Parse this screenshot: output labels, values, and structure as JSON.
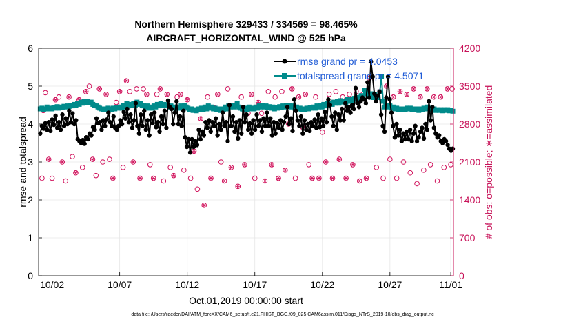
{
  "chart_data": {
    "type": "line",
    "title_line1": "Northern Hemisphere 329433 / 334569 = 98.465%",
    "title_line2": "AIRCRAFT_HORIZONTAL_WIND @ 525 hPa",
    "xlabel": "Oct.01,2019 00:00:00 start",
    "ylabel_left": "rmse and totalspread",
    "ylabel_right": "# of obs: o=possible; ∗=assimilated",
    "x_range": [
      0.5,
      31.2
    ],
    "ylim_left": [
      0,
      6
    ],
    "ylim_right": [
      0,
      4200
    ],
    "x_ticks": [
      {
        "value": 1.5,
        "label": "10/02"
      },
      {
        "value": 6.5,
        "label": "10/07"
      },
      {
        "value": 11.5,
        "label": "10/12"
      },
      {
        "value": 16.5,
        "label": "10/17"
      },
      {
        "value": 21.5,
        "label": "10/22"
      },
      {
        "value": 26.5,
        "label": "10/27"
      },
      {
        "value": 31.0,
        "label": "11/01"
      }
    ],
    "y_ticks_left": [
      "0",
      "1",
      "2",
      "3",
      "4",
      "5",
      "6"
    ],
    "y_ticks_right": [
      "0",
      "700",
      "1400",
      "2100",
      "2800",
      "3500",
      "4200"
    ],
    "legend": [
      {
        "label": "rmse grand pr = 4.0453",
        "color": "#000000"
      },
      {
        "label": "totalspread grand pr = 4.5071",
        "color": "#008b8b"
      }
    ],
    "footnote": "data file: /Users/raeder/DAI/ATM_forcXX/CAM6_setup/f.e21.FHIST_BGC.f09_025.CAM6assim.011/Diags_NTrS_2019-10/obs_diag_output.nc",
    "colors": {
      "rmse": "#000000",
      "spread": "#008b8b",
      "obs": "#d0105a",
      "axis_right": "#c8145a"
    },
    "series": [
      {
        "name": "rmse",
        "values": [
          3.75,
          3.95,
          3.88,
          4.02,
          3.85,
          4.05,
          3.82,
          4.12,
          3.98,
          4.22,
          3.9,
          4.05,
          3.85,
          4.25,
          3.95,
          4.15,
          4.0,
          4.35,
          4.05,
          4.28,
          4.0,
          4.1,
          3.6,
          3.55,
          3.5,
          3.58,
          3.48,
          3.65,
          3.6,
          3.75,
          3.7,
          3.92,
          3.85,
          4.15,
          4.02,
          4.05,
          3.85,
          4.1,
          3.95,
          4.12,
          4.3,
          4.05,
          3.95,
          4.2,
          3.9,
          3.85,
          3.95,
          4.1,
          4.0,
          4.32,
          4.15,
          4.4,
          4.05,
          4.25,
          3.9,
          4.1,
          4.55,
          3.95,
          3.75,
          4.25,
          3.95,
          4.35,
          3.85,
          4.1,
          3.7,
          4.25,
          4.02,
          4.3,
          3.92,
          4.05,
          3.8,
          4.2,
          4.0,
          4.35,
          3.9,
          4.62,
          4.45,
          4.4,
          4.0,
          4.3,
          4.6,
          4.0,
          4.2,
          3.95,
          4.35,
          3.65,
          3.4,
          3.6,
          3.25,
          3.6,
          3.4,
          3.55,
          3.45,
          3.85,
          3.6,
          3.8,
          3.7,
          4.05,
          3.9,
          4.1,
          3.8,
          4.05,
          3.95,
          4.15,
          3.7,
          4.0,
          3.85,
          4.3,
          3.95,
          4.05,
          3.55,
          4.5,
          3.95,
          4.2,
          3.8,
          4.05,
          3.62,
          4.1,
          3.75,
          4.45,
          4.05,
          4.25,
          3.85,
          4.02,
          3.75,
          4.1,
          3.85,
          4.25,
          3.95,
          4.1,
          3.8,
          4.15,
          3.95,
          4.3,
          3.95,
          4.15,
          3.7,
          4.05,
          3.75,
          4.02,
          3.9,
          4.1,
          3.85,
          4.05,
          4.2,
          4.45,
          4.0,
          4.15,
          3.82,
          4.65,
          4.35,
          4.1,
          3.95,
          4.2,
          3.75,
          4.1,
          3.85,
          4.0,
          3.82,
          4.05,
          3.95,
          4.12,
          3.9,
          4.25,
          3.92,
          4.15,
          3.95,
          4.32,
          4.05,
          4.65,
          4.5,
          4.2,
          3.95,
          4.3,
          3.85,
          4.25,
          4.1,
          4.4,
          4.1,
          4.55,
          4.35,
          4.45,
          4.3,
          4.5,
          4.4,
          4.95,
          4.55,
          4.45,
          4.6,
          4.7,
          4.65,
          4.55,
          5.1,
          4.7,
          5.65,
          5.25,
          4.8,
          4.6,
          4.75,
          4.85,
          4.25,
          3.95,
          3.8,
          4.7,
          5.25,
          4.65,
          4.3,
          3.95,
          3.65,
          4.0,
          3.7,
          3.85,
          3.55,
          3.75,
          3.6,
          3.8,
          3.6,
          3.85,
          3.55,
          3.75,
          3.95,
          3.55,
          3.65,
          3.8,
          3.9,
          3.62,
          4.0,
          3.85,
          4.6,
          4.1,
          4.45,
          3.9,
          3.75,
          3.65,
          3.7,
          3.55,
          3.5,
          3.6,
          3.55,
          3.45,
          3.35,
          3.3,
          3.35
        ],
        "n_values": 246
      },
      {
        "name": "totalspread",
        "values": [
          4.4,
          4.42,
          4.38,
          4.4,
          4.45,
          4.4,
          4.42,
          4.4,
          4.44,
          4.42,
          4.46,
          4.42,
          4.45,
          4.44,
          4.47,
          4.45,
          4.48,
          4.46,
          4.5,
          4.48,
          4.52,
          4.5,
          4.55,
          4.52,
          4.58,
          4.55,
          4.6,
          4.57,
          4.6,
          4.57,
          4.58,
          4.52,
          4.5,
          4.48,
          4.45,
          4.42,
          4.4,
          4.38,
          4.4,
          4.38,
          4.42,
          4.4,
          4.38,
          4.42,
          4.4,
          4.44,
          4.42,
          4.45,
          4.42,
          4.5,
          4.45,
          4.55,
          4.48,
          4.52,
          4.5,
          4.55,
          4.5,
          4.58,
          4.52,
          4.55,
          4.5,
          4.48,
          4.45,
          4.48,
          4.42,
          4.45,
          4.42,
          4.48,
          4.45,
          4.52,
          4.48,
          4.55,
          4.5,
          4.52,
          4.48,
          4.5,
          4.45,
          4.48,
          4.42,
          4.45,
          4.4,
          4.44,
          4.42,
          4.48,
          4.45,
          4.5,
          4.45,
          4.42,
          4.38,
          4.4,
          4.36,
          4.38,
          4.35,
          4.4,
          4.38,
          4.42,
          4.38,
          4.45,
          4.4,
          4.48,
          4.42,
          4.45,
          4.4,
          4.42,
          4.38,
          4.4,
          4.36,
          4.4,
          4.38,
          4.45,
          4.4,
          4.48,
          4.45,
          4.5,
          4.45,
          4.5,
          4.55,
          4.45,
          4.42,
          4.4,
          4.38,
          4.42,
          4.38,
          4.45,
          4.4,
          4.42,
          4.4,
          4.45,
          4.42,
          4.48,
          4.45,
          4.5,
          4.45,
          4.48,
          4.44,
          4.46,
          4.42,
          4.45,
          4.4,
          4.44,
          4.42,
          4.46,
          4.44,
          4.48,
          4.45,
          4.5,
          4.46,
          4.5,
          4.45,
          4.48,
          4.42,
          4.45,
          4.4,
          4.42,
          4.38,
          4.4,
          4.38,
          4.42,
          4.4,
          4.44,
          4.42,
          4.45,
          4.42,
          4.48,
          4.45,
          4.5,
          4.45,
          4.52,
          4.48,
          4.55,
          4.5,
          4.55,
          4.52,
          4.58,
          4.55,
          4.6,
          4.55,
          4.62,
          4.58,
          4.6,
          4.55,
          4.65,
          4.6,
          4.65,
          4.62,
          4.68,
          4.65,
          4.7,
          4.65,
          4.75,
          4.7,
          4.9,
          4.8,
          4.85,
          4.75,
          4.8,
          4.7,
          4.78,
          4.72,
          4.7,
          4.85,
          5.25,
          4.6,
          4.45,
          4.5,
          4.45,
          4.48,
          4.42,
          4.45,
          4.4,
          4.42,
          4.38,
          4.4,
          4.38,
          4.4,
          4.38,
          4.42,
          4.4,
          4.42,
          4.38,
          4.4,
          4.38,
          4.4,
          4.36,
          4.4,
          4.38,
          4.42,
          4.4,
          4.45,
          4.42,
          4.4,
          4.38,
          4.4,
          4.36,
          4.38,
          4.36,
          4.38,
          4.35,
          4.38,
          4.36,
          4.38,
          4.35,
          4.36,
          4.34
        ],
        "n_values": 246
      }
    ],
    "obs_possible": [
      [
        0.75,
        1800
      ],
      [
        0.85,
        3050
      ],
      [
        1.0,
        3380
      ],
      [
        1.25,
        2150
      ],
      [
        1.5,
        1800
      ],
      [
        1.75,
        3250
      ],
      [
        2.0,
        3300
      ],
      [
        2.25,
        2100
      ],
      [
        2.5,
        1750
      ],
      [
        2.75,
        3300
      ],
      [
        3.0,
        2200
      ],
      [
        3.25,
        1900
      ],
      [
        3.5,
        3250
      ],
      [
        3.75,
        2000
      ],
      [
        4.0,
        3400
      ],
      [
        4.25,
        3500
      ],
      [
        4.5,
        2150
      ],
      [
        4.75,
        1850
      ],
      [
        5.0,
        3450
      ],
      [
        5.25,
        2100
      ],
      [
        5.5,
        3350
      ],
      [
        5.75,
        2150
      ],
      [
        6.0,
        1800
      ],
      [
        6.25,
        3200
      ],
      [
        6.5,
        3400
      ],
      [
        6.75,
        2000
      ],
      [
        7.0,
        3600
      ],
      [
        7.25,
        3400
      ],
      [
        7.5,
        2100
      ],
      [
        7.75,
        3450
      ],
      [
        8.0,
        1800
      ],
      [
        8.25,
        3450
      ],
      [
        8.5,
        3350
      ],
      [
        8.75,
        2050
      ],
      [
        9.0,
        1800
      ],
      [
        9.25,
        3350
      ],
      [
        9.5,
        3450
      ],
      [
        9.75,
        1750
      ],
      [
        10.0,
        3350
      ],
      [
        10.25,
        2000
      ],
      [
        10.5,
        1850
      ],
      [
        10.75,
        3300
      ],
      [
        11.0,
        3350
      ],
      [
        11.25,
        1950
      ],
      [
        11.5,
        3250
      ],
      [
        11.75,
        1800
      ],
      [
        12.0,
        2300
      ],
      [
        12.25,
        1600
      ],
      [
        12.5,
        2900
      ],
      [
        12.75,
        1300
      ],
      [
        13.0,
        3300
      ],
      [
        13.25,
        1800
      ],
      [
        13.5,
        3100
      ],
      [
        13.75,
        3350
      ],
      [
        14.0,
        2100
      ],
      [
        14.25,
        1750
      ],
      [
        14.5,
        3450
      ],
      [
        14.75,
        2000
      ],
      [
        15.0,
        3150
      ],
      [
        15.25,
        1650
      ],
      [
        15.5,
        3300
      ],
      [
        15.75,
        2050
      ],
      [
        16.0,
        3000
      ],
      [
        16.25,
        3350
      ],
      [
        16.5,
        1800
      ],
      [
        16.75,
        3200
      ],
      [
        17.0,
        3000
      ],
      [
        17.25,
        1750
      ],
      [
        17.5,
        3400
      ],
      [
        17.75,
        2050
      ],
      [
        18.0,
        3300
      ],
      [
        18.25,
        1800
      ],
      [
        18.5,
        3400
      ],
      [
        18.75,
        1950
      ],
      [
        19.0,
        2800
      ],
      [
        19.25,
        3450
      ],
      [
        19.5,
        1800
      ],
      [
        19.75,
        3300
      ],
      [
        20.0,
        2750
      ],
      [
        20.25,
        3350
      ],
      [
        20.5,
        2050
      ],
      [
        20.75,
        1800
      ],
      [
        21.0,
        3300
      ],
      [
        21.25,
        1800
      ],
      [
        21.5,
        2650
      ],
      [
        21.75,
        2100
      ],
      [
        22.0,
        3350
      ],
      [
        22.25,
        1800
      ],
      [
        22.5,
        3400
      ],
      [
        22.75,
        2150
      ],
      [
        23.0,
        3300
      ],
      [
        23.25,
        1800
      ],
      [
        23.5,
        3350
      ],
      [
        23.75,
        2050
      ],
      [
        24.0,
        3400
      ],
      [
        24.25,
        1750
      ],
      [
        24.5,
        3350
      ],
      [
        24.75,
        1800
      ],
      [
        25.0,
        3650
      ],
      [
        25.25,
        3350
      ],
      [
        25.5,
        2000
      ],
      [
        25.75,
        3400
      ],
      [
        26.0,
        1800
      ],
      [
        26.25,
        3500
      ],
      [
        26.5,
        2150
      ],
      [
        26.75,
        3300
      ],
      [
        27.0,
        1800
      ],
      [
        27.25,
        3400
      ],
      [
        27.5,
        2100
      ],
      [
        27.75,
        3350
      ],
      [
        28.0,
        1900
      ],
      [
        28.25,
        3450
      ],
      [
        28.5,
        1700
      ],
      [
        28.75,
        3300
      ],
      [
        29.0,
        1950
      ],
      [
        29.25,
        3450
      ],
      [
        29.5,
        2050
      ],
      [
        29.75,
        3300
      ],
      [
        30.0,
        1750
      ],
      [
        30.25,
        3300
      ],
      [
        30.5,
        2000
      ],
      [
        30.75,
        3450
      ],
      [
        31.0,
        2050
      ],
      [
        31.1,
        3450
      ]
    ],
    "obs_assimilated": [
      [
        0.85,
        3050
      ],
      [
        1.25,
        2150
      ],
      [
        1.75,
        3250
      ],
      [
        2.25,
        2100
      ],
      [
        2.75,
        3300
      ],
      [
        3.25,
        1900
      ],
      [
        3.5,
        3250
      ],
      [
        4.0,
        3400
      ],
      [
        4.5,
        2150
      ],
      [
        5.0,
        3450
      ],
      [
        5.5,
        3350
      ],
      [
        6.0,
        1800
      ],
      [
        6.5,
        3400
      ],
      [
        7.0,
        3600
      ],
      [
        7.5,
        2100
      ],
      [
        8.0,
        1800
      ],
      [
        8.5,
        3350
      ],
      [
        9.0,
        1800
      ],
      [
        9.5,
        3450
      ],
      [
        10.0,
        3350
      ],
      [
        10.5,
        1850
      ],
      [
        11.0,
        3350
      ],
      [
        11.5,
        3250
      ],
      [
        12.0,
        2300
      ],
      [
        12.5,
        2900
      ],
      [
        12.75,
        1300
      ],
      [
        13.25,
        1800
      ],
      [
        13.75,
        3350
      ],
      [
        14.25,
        1750
      ],
      [
        14.75,
        2000
      ],
      [
        15.25,
        1650
      ],
      [
        15.75,
        2050
      ],
      [
        16.25,
        3350
      ],
      [
        16.75,
        3200
      ],
      [
        17.25,
        1750
      ],
      [
        17.75,
        2050
      ],
      [
        18.25,
        1800
      ],
      [
        18.75,
        1950
      ],
      [
        19.25,
        3450
      ],
      [
        19.75,
        3300
      ],
      [
        20.25,
        3350
      ],
      [
        20.75,
        1800
      ],
      [
        21.25,
        1800
      ],
      [
        21.75,
        2100
      ],
      [
        22.25,
        1800
      ],
      [
        22.75,
        2150
      ],
      [
        23.25,
        1800
      ],
      [
        23.75,
        2050
      ],
      [
        24.25,
        1750
      ],
      [
        24.75,
        1800
      ],
      [
        25.25,
        3350
      ],
      [
        25.75,
        3400
      ],
      [
        26.25,
        3500
      ],
      [
        26.75,
        3300
      ],
      [
        27.25,
        3400
      ],
      [
        27.75,
        3350
      ],
      [
        28.25,
        3450
      ],
      [
        28.75,
        3300
      ],
      [
        29.25,
        3450
      ],
      [
        29.75,
        3300
      ],
      [
        30.25,
        3300
      ],
      [
        30.75,
        3450
      ]
    ]
  }
}
